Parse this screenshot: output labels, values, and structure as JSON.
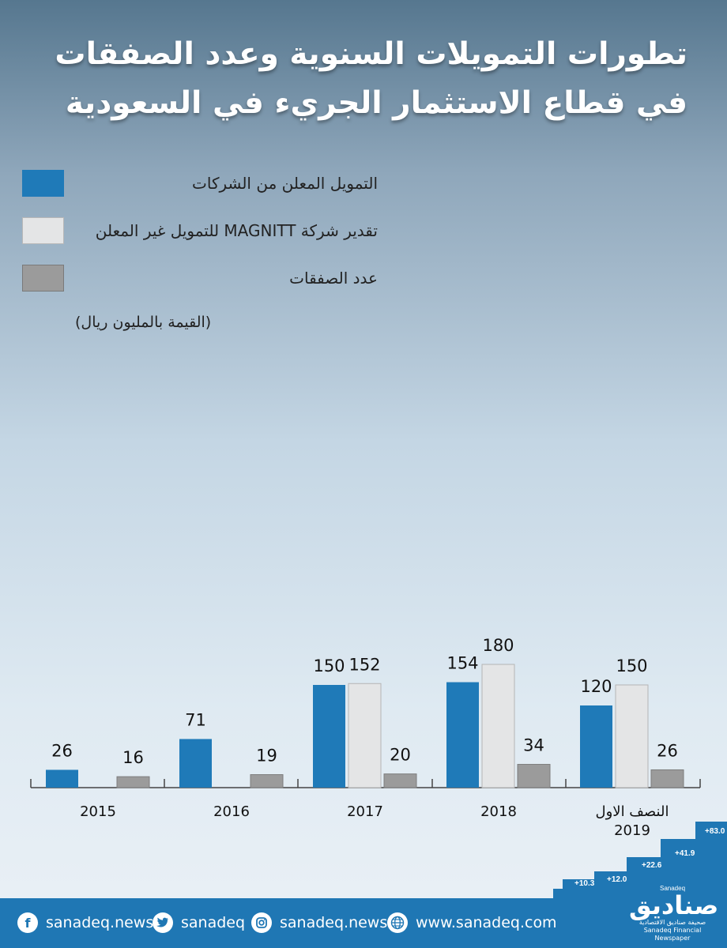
{
  "title_line1": "تطورات التمويلات السنوية وعدد الصفقات",
  "title_line2": "في قطاع الاستثمار الجريء في السعودية",
  "colors": {
    "announced": "#1f7ab8",
    "magnitt": "#e4e5e6",
    "deals": "#9b9b9b",
    "footer": "#1f77b4"
  },
  "legend": [
    {
      "label": "التمويل المعلن من الشركات",
      "color": "#1f7ab8"
    },
    {
      "label": "تقدير شركة MAGNITT للتمويل غير المعلن",
      "color": "#e4e5e6"
    },
    {
      "label": "عدد الصفقات",
      "color": "#9b9b9b"
    }
  ],
  "unit_note": "(القيمة بالمليون ريال)",
  "chart_data": {
    "type": "bar",
    "categories": [
      "2015",
      "2016",
      "2017",
      "2018",
      "النصف الاول\n2019"
    ],
    "series": [
      {
        "name": "التمويل المعلن من الشركات",
        "values": [
          26,
          71,
          150,
          154,
          120
        ]
      },
      {
        "name": "تقدير شركة MAGNITT للتمويل غير المعلن",
        "values": [
          null,
          null,
          152,
          180,
          150
        ]
      },
      {
        "name": "عدد الصفقات",
        "values": [
          16,
          19,
          20,
          34,
          26
        ]
      }
    ],
    "ylim": [
      0,
      180
    ],
    "grid": false,
    "legend_position": "top-left"
  },
  "stairs": [
    "+10.3",
    "+12.0",
    "+22.6",
    "+41.9",
    "+83.0"
  ],
  "footer": {
    "facebook": {
      "icon": "facebook-icon",
      "text": "sanadeq.news"
    },
    "twitter": {
      "icon": "twitter-icon",
      "text": "sanadeq"
    },
    "instagram": {
      "icon": "instagram-icon",
      "text": "sanadeq.news"
    },
    "web": {
      "icon": "globe-icon",
      "text": "www.sanadeq.com"
    }
  },
  "logo": {
    "small": "Sanadeq",
    "name": "صناديق",
    "tagline_ar": "صحيفة صناديق الاقتصادية",
    "tagline_en": "Sanadeq Financial Newspaper"
  }
}
